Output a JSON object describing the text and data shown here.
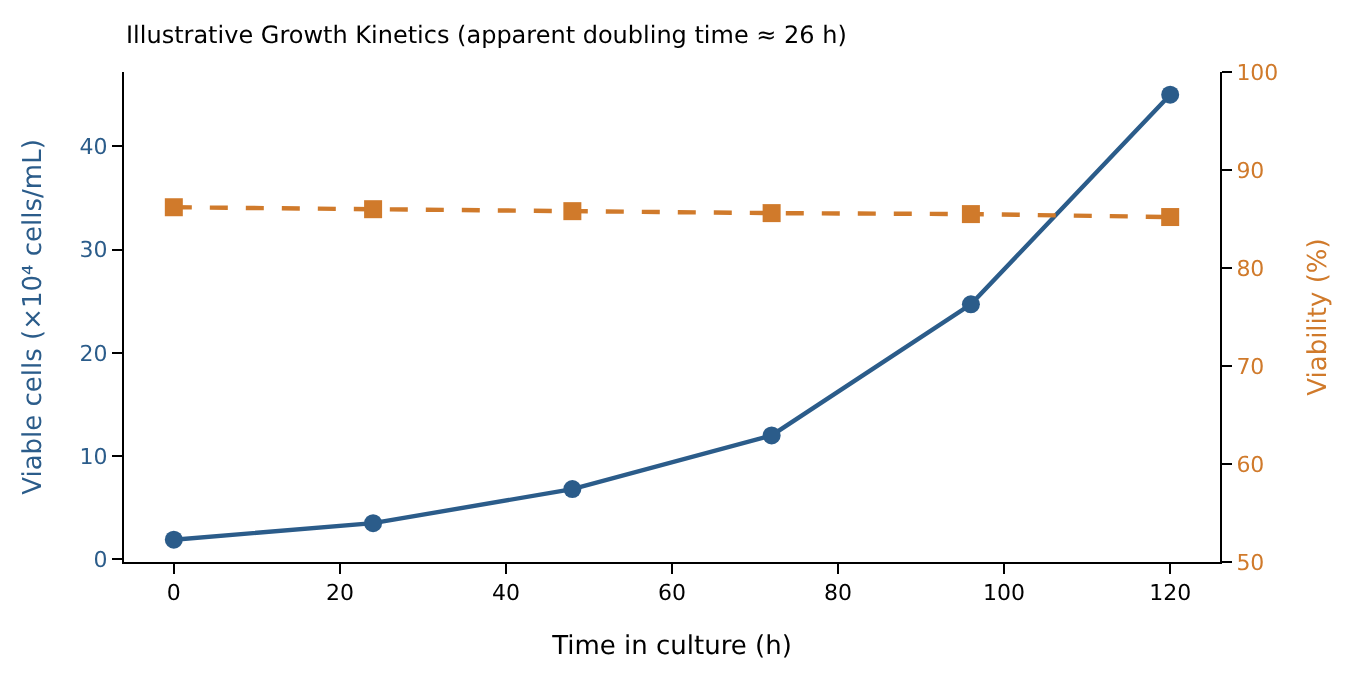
{
  "chart_data": {
    "type": "line",
    "title": "Illustrative Growth Kinetics (apparent doubling time ≈ 26 h)",
    "xlabel": "Time in culture (h)",
    "ylabel": "Viable cells (×10⁴ cells/mL)",
    "y2label": "Viability (%)",
    "x": [
      0,
      24,
      48,
      72,
      96,
      120
    ],
    "series": [
      {
        "color": "#2b5c8a",
        "values": [
          1.9,
          3.5,
          6.8,
          12.0,
          24.7,
          45.0
        ],
        "marker": "circle",
        "line_style": "solid"
      },
      {
        "color": "#d07a2b",
        "values": [
          86.2,
          86.0,
          85.8,
          85.6,
          85.5,
          85.2
        ],
        "axis": "y2",
        "marker": "square",
        "line_style": "dashed"
      }
    ],
    "xlim": [
      -6,
      126
    ],
    "xticks": [
      0,
      20,
      40,
      60,
      80,
      100,
      120
    ],
    "ylim": [
      -0.26,
      47.2
    ],
    "yticks": [
      0,
      10,
      20,
      30,
      40
    ],
    "y2lim": [
      50,
      100
    ],
    "y2ticks": [
      50,
      60,
      70,
      80,
      90,
      100
    ]
  }
}
